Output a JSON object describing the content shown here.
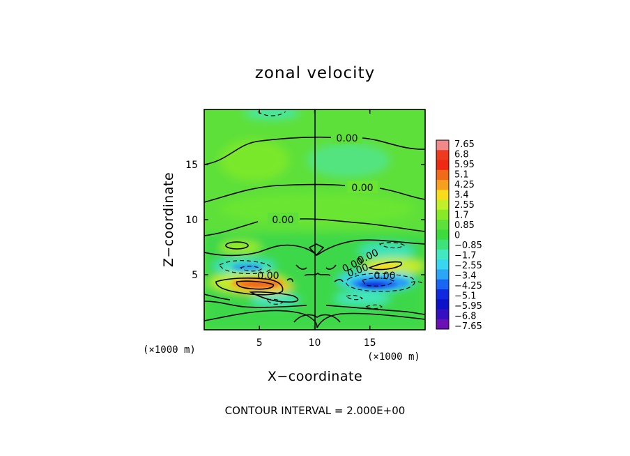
{
  "chart_data": {
    "type": "heatmap",
    "title": "zonal velocity",
    "xlabel": "X−coordinate",
    "ylabel": "Z−coordinate",
    "x_unit": "(×1000 m)",
    "z_unit": "(×1000 m)",
    "xlim": [
      0,
      20
    ],
    "ylim": [
      0,
      20
    ],
    "x_ticks": [
      5,
      10,
      15
    ],
    "y_ticks": [
      5,
      10,
      15
    ],
    "colorbar": {
      "levels": [
        "7.65",
        "6.8",
        "5.95",
        "5.1",
        "4.25",
        "3.4",
        "2.55",
        "1.7",
        "0.85",
        "0",
        "−0.85",
        "−1.7",
        "−2.55",
        "−3.4",
        "−4.25",
        "−5.1",
        "−5.95",
        "−6.8",
        "−7.65"
      ],
      "colors": [
        "#f08a8a",
        "#ee3a1e",
        "#ef2a12",
        "#f06a18",
        "#f7a01e",
        "#f8dc1c",
        "#bff02a",
        "#86ea26",
        "#5ee03a",
        "#3cda3c",
        "#3ee27a",
        "#42e8bf",
        "#3ad6f0",
        "#2aa6f4",
        "#1a66f4",
        "#1028e0",
        "#0c12c8",
        "#3410c0",
        "#6a10b4"
      ]
    },
    "contour_labels": [
      "0.00",
      "0.00",
      "0.00",
      "0.00",
      "0.00",
      "0.00",
      "0.00",
      "0.00"
    ],
    "contour_interval_text": "CONTOUR INTERVAL = 2.000E+00"
  }
}
